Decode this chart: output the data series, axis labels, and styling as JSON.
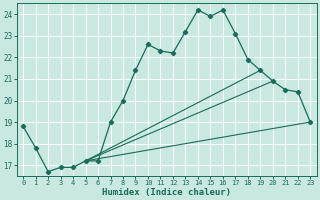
{
  "title": "",
  "xlabel": "Humidex (Indice chaleur)",
  "bg_color": "#c8e8e0",
  "line_color": "#1a6b5a",
  "grid_color": "#ffffff",
  "xlim": [
    -0.5,
    23.5
  ],
  "ylim": [
    16.5,
    24.5
  ],
  "yticks": [
    17,
    18,
    19,
    20,
    21,
    22,
    23,
    24
  ],
  "xticks": [
    0,
    1,
    2,
    3,
    4,
    5,
    6,
    7,
    8,
    9,
    10,
    11,
    12,
    13,
    14,
    15,
    16,
    17,
    18,
    19,
    20,
    21,
    22,
    23
  ],
  "line1_x": [
    0,
    1,
    2,
    3,
    4,
    5,
    6,
    7,
    8,
    9,
    10,
    11,
    12,
    13,
    14,
    15,
    16,
    17,
    18,
    19,
    20,
    21,
    22,
    23
  ],
  "line1_y": [
    18.8,
    17.8,
    16.7,
    16.9,
    16.9,
    17.2,
    17.2,
    19.0,
    20.0,
    21.4,
    22.6,
    22.3,
    22.2,
    23.2,
    24.2,
    23.9,
    24.2,
    23.1,
    21.9,
    21.4,
    20.9,
    20.5,
    20.4,
    19.0
  ],
  "line2_x": [
    5,
    23
  ],
  "line2_y": [
    17.2,
    19.0
  ],
  "line3_x": [
    5,
    19
  ],
  "line3_y": [
    17.2,
    21.4
  ],
  "line4_x": [
    5,
    20
  ],
  "line4_y": [
    17.2,
    20.9
  ]
}
